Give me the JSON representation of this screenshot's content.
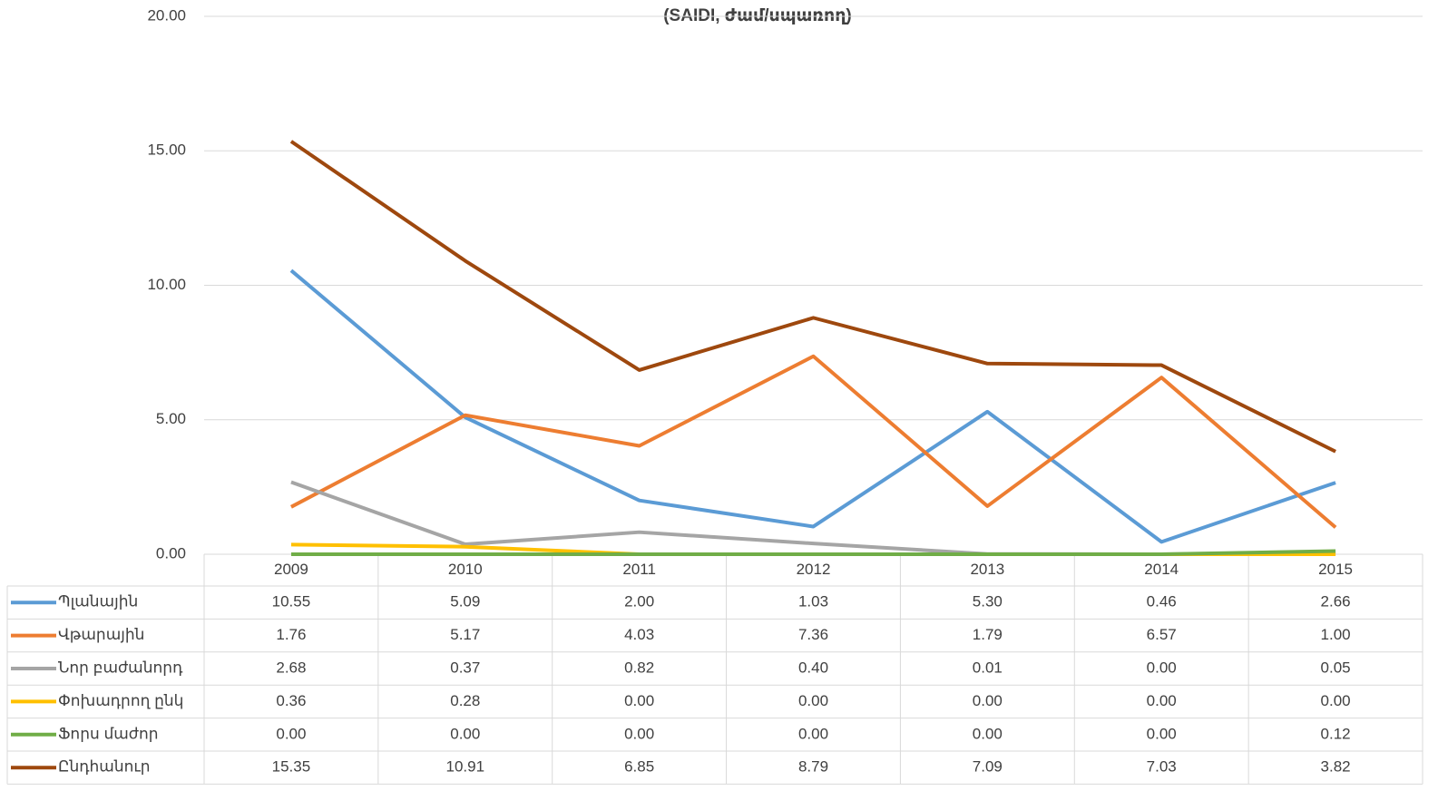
{
  "chart_data": {
    "type": "line",
    "title": "(SAIDI, ժամ/սպառող)",
    "categories": [
      "2009",
      "2010",
      "2011",
      "2012",
      "2013",
      "2014",
      "2015"
    ],
    "series": [
      {
        "name": "Պլանային",
        "color": "#5b9bd5",
        "values": [
          10.55,
          5.09,
          2.0,
          1.03,
          5.3,
          0.46,
          2.66
        ],
        "value_labels": [
          "10.55",
          "5.09",
          "2.00",
          "1.03",
          "5.30",
          "0.46",
          "2.66"
        ]
      },
      {
        "name": "Վթարային",
        "color": "#ed7d31",
        "values": [
          1.76,
          5.17,
          4.03,
          7.36,
          1.79,
          6.57,
          1.0
        ],
        "value_labels": [
          "1.76",
          "5.17",
          "4.03",
          "7.36",
          "1.79",
          "6.57",
          "1.00"
        ]
      },
      {
        "name": "Նոր բաժանորդ",
        "color": "#a5a5a5",
        "values": [
          2.68,
          0.37,
          0.82,
          0.4,
          0.01,
          0.0,
          0.05
        ],
        "value_labels": [
          "2.68",
          "0.37",
          "0.82",
          "0.40",
          "0.01",
          "0.00",
          "0.05"
        ]
      },
      {
        "name": "Փոխադրող ընկ",
        "color": "#ffc000",
        "values": [
          0.36,
          0.28,
          0.0,
          0.0,
          0.0,
          0.0,
          0.0
        ],
        "value_labels": [
          "0.36",
          "0.28",
          "0.00",
          "0.00",
          "0.00",
          "0.00",
          "0.00"
        ]
      },
      {
        "name": "Ֆորս մաժոր",
        "color": "#70ad47",
        "values": [
          0.0,
          0.0,
          0.0,
          0.0,
          0.0,
          0.0,
          0.12
        ],
        "value_labels": [
          "0.00",
          "0.00",
          "0.00",
          "0.00",
          "0.00",
          "0.00",
          "0.12"
        ]
      },
      {
        "name": "Ընդհանուր",
        "color": "#9e480e",
        "values": [
          15.35,
          10.91,
          6.85,
          8.79,
          7.09,
          7.03,
          3.82
        ],
        "value_labels": [
          "15.35",
          "10.91",
          "6.85",
          "8.79",
          "7.09",
          "7.03",
          "3.82"
        ]
      }
    ],
    "ylim": [
      0,
      20
    ],
    "yticks": [
      {
        "value": 0,
        "label": "0.00"
      },
      {
        "value": 5,
        "label": "5.00"
      },
      {
        "value": 10,
        "label": "10.00"
      },
      {
        "value": 15,
        "label": "15.00"
      },
      {
        "value": 20,
        "label": "20.00"
      }
    ],
    "grid": true
  }
}
